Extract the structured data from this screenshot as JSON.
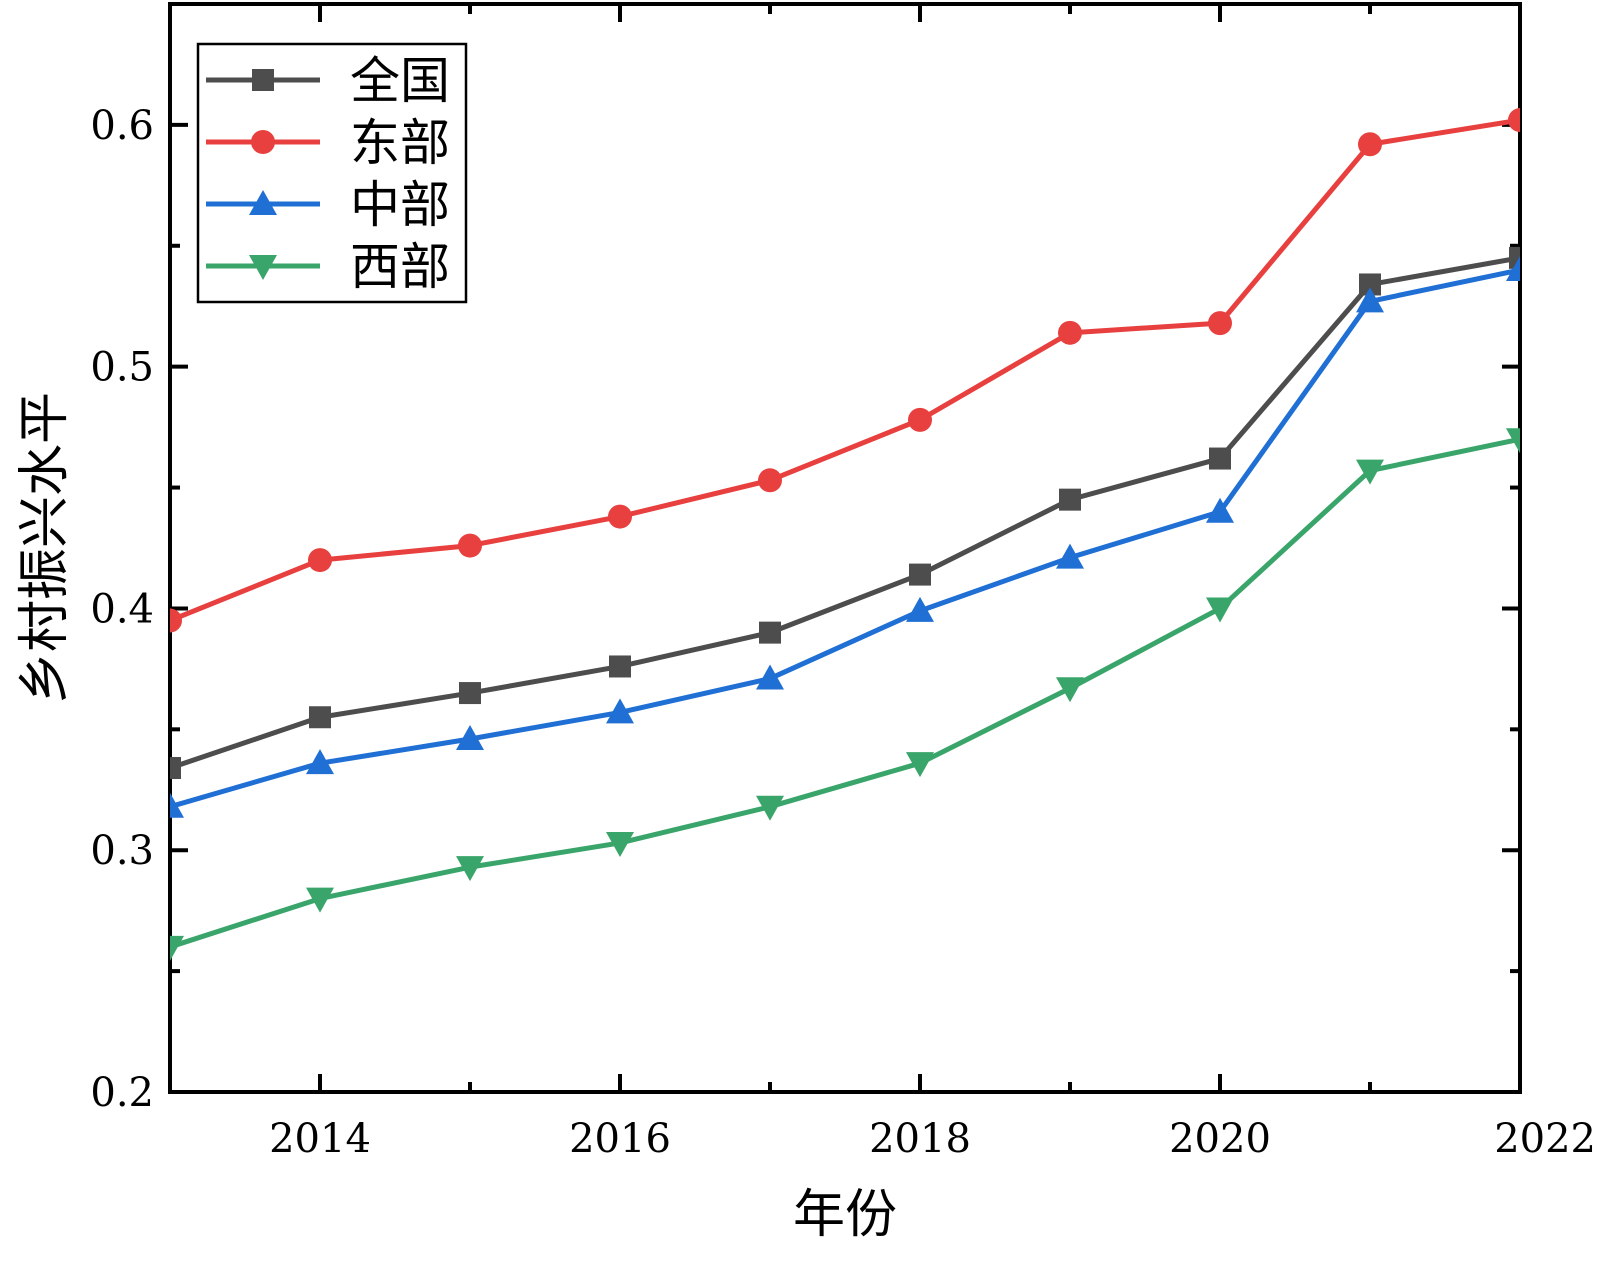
{
  "chart_data": {
    "type": "line",
    "title": "",
    "xlabel": "年份",
    "ylabel": "乡村振兴水平",
    "x": [
      2013,
      2014,
      2015,
      2016,
      2017,
      2018,
      2019,
      2020,
      2021,
      2022
    ],
    "xlim": [
      2013,
      2022
    ],
    "ylim": [
      0.2,
      0.65
    ],
    "x_ticks": [
      2014,
      2016,
      2018,
      2020,
      2022
    ],
    "x_tick_labels": [
      "2014",
      "2016",
      "2018",
      "2020",
      "2022"
    ],
    "y_ticks": [
      0.2,
      0.3,
      0.4,
      0.5,
      0.6
    ],
    "y_tick_labels": [
      "0.2",
      "0.3",
      "0.4",
      "0.5",
      "0.6"
    ],
    "grid": false,
    "legend_position": "top-left",
    "series": [
      {
        "name": "全国",
        "color": "#4d4d4d",
        "marker": "square",
        "values": [
          0.334,
          0.355,
          0.365,
          0.376,
          0.39,
          0.414,
          0.445,
          0.462,
          0.534,
          0.545
        ]
      },
      {
        "name": "东部",
        "color": "#e8403f",
        "marker": "circle",
        "values": [
          0.395,
          0.42,
          0.426,
          0.438,
          0.453,
          0.478,
          0.514,
          0.518,
          0.592,
          0.602
        ]
      },
      {
        "name": "中部",
        "color": "#1f6fd4",
        "marker": "triangle-up",
        "values": [
          0.318,
          0.336,
          0.346,
          0.357,
          0.371,
          0.399,
          0.421,
          0.44,
          0.527,
          0.54
        ]
      },
      {
        "name": "西部",
        "color": "#3aa56a",
        "marker": "triangle-down",
        "values": [
          0.26,
          0.28,
          0.293,
          0.303,
          0.318,
          0.336,
          0.367,
          0.4,
          0.457,
          0.47
        ]
      }
    ]
  }
}
